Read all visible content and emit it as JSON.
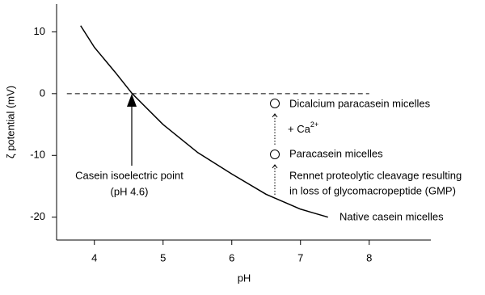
{
  "chart_data": {
    "type": "line",
    "x_label": "pH",
    "y_label": "ζ potential (mV)",
    "xlim": [
      3.45,
      8.9
    ],
    "ylim": [
      -23.7,
      14.5
    ],
    "xticks": [
      4,
      5,
      6,
      7,
      8
    ],
    "yticks": [
      -20,
      -10,
      0,
      10
    ],
    "series": [
      {
        "color": "#000000",
        "x": [
          3.8,
          4.0,
          4.3,
          4.55,
          5.0,
          5.5,
          6.0,
          6.5,
          7.0,
          7.4
        ],
        "values": [
          11,
          7.5,
          3.5,
          0,
          -5,
          -9.5,
          -13,
          -16.3,
          -18.7,
          -20
        ]
      }
    ],
    "reference_line": {
      "y": 0,
      "x": [
        3.6,
        8
      ]
    },
    "annotations": {
      "isoelectric": [
        "Casein isoelectric point",
        "(pH 4.6)"
      ],
      "dicalcium": "Dicalcium paracasein micelles",
      "calcium": {
        "text": "+ Ca",
        "sup": "2+"
      },
      "paracasein": "Paracasein micelles",
      "rennet": [
        "Rennet proteolytic cleavage resulting",
        "in loss of glycomacropeptide (GMP)"
      ],
      "native": "Native casein micelles"
    }
  }
}
